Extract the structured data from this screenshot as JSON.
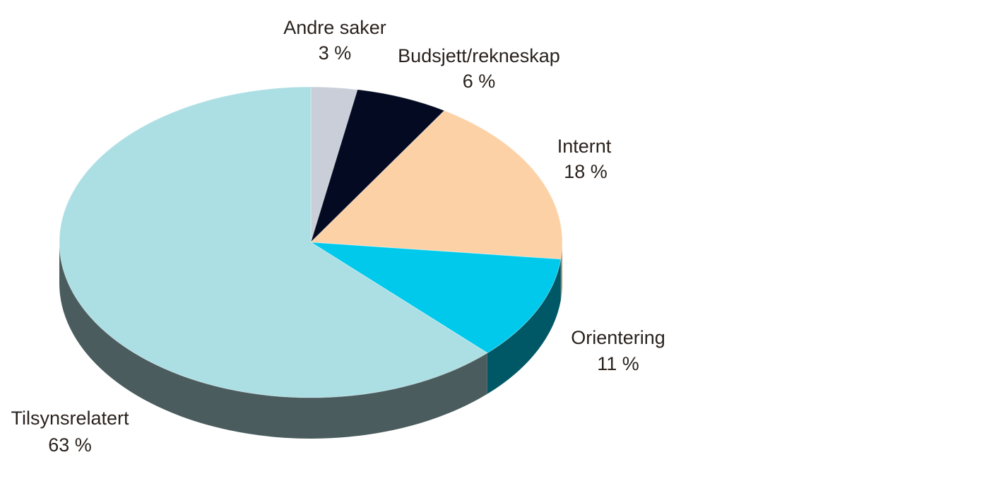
{
  "chart_data": {
    "type": "pie",
    "style": "3d",
    "slices": [
      {
        "label": "Andre saker",
        "value": 3,
        "value_label": "3 %",
        "color": "#c9ced8",
        "side_color": "#8e949e"
      },
      {
        "label": "Budsjett/rekneskap",
        "value": 6,
        "value_label": "6 %",
        "color": "#040a22",
        "side_color": "#020510"
      },
      {
        "label": "Internt",
        "value": 18,
        "value_label": "18 %",
        "color": "#fdd1a6",
        "side_color": "#b58e68"
      },
      {
        "label": "Orientering",
        "value": 11,
        "value_label": "11 %",
        "color": "#00c9ec",
        "side_color": "#005866"
      },
      {
        "label": "Tilsynsrelatert",
        "value": 63,
        "value_label": "63 %",
        "color": "#acdfe4",
        "side_color": "#4a5c5e"
      }
    ]
  }
}
